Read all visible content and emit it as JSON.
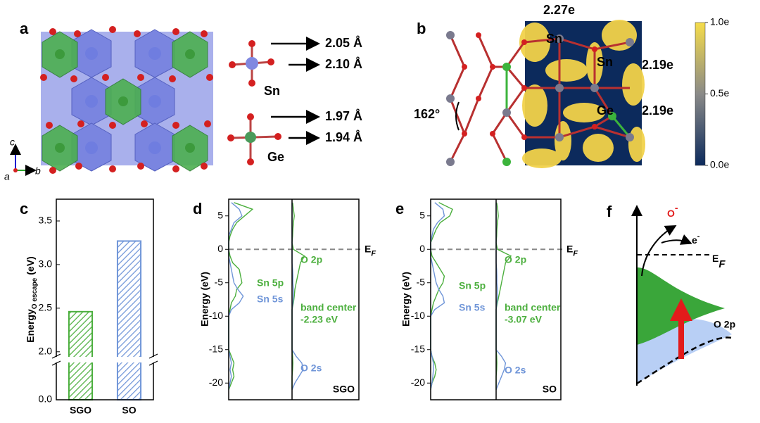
{
  "panel_a": {
    "label": "a",
    "bonds": [
      "2.05 Å",
      "2.10 Å",
      "1.97 Å",
      "1.94 Å"
    ],
    "atoms": [
      "Sn",
      "Ge"
    ],
    "axes": [
      "c",
      "a",
      "b"
    ]
  },
  "panel_b": {
    "label": "b",
    "charges": [
      "2.27e",
      "2.19e",
      "2.19e"
    ],
    "atoms": [
      "Sn",
      "Sn",
      "Ge"
    ],
    "angle": "162°",
    "colorbar": {
      "lim": [
        0,
        1
      ],
      "ticks": [
        {
          "value": 1,
          "label": "1.0e"
        },
        {
          "value": 0.5,
          "label": "0.5e"
        },
        {
          "value": 0,
          "label": "0.0e"
        }
      ]
    }
  },
  "chart_data": [
    {
      "type": "bar",
      "panel_label": "c",
      "ylabel": "Energy",
      "ylabel_sub": "O escape",
      "ylabel_unit": "(eV)",
      "categories": [
        "SGO",
        "SO"
      ],
      "values": [
        2.46,
        3.27
      ],
      "colors": [
        "#4caf3e",
        "#6f95d8"
      ],
      "ylim": [
        0,
        3.75
      ],
      "axis_break": [
        0.1,
        1.95
      ],
      "yticks": [
        {
          "value": 0,
          "label": "0.0"
        },
        {
          "value": 2,
          "label": "2.0"
        },
        2.5,
        {
          "value": 3,
          "label": "3.0"
        },
        3.5
      ]
    },
    {
      "type": "dos",
      "panel_label": "d",
      "sample": "SGO",
      "ylabel": "Energy (eV)",
      "ylim": [
        -22.5,
        7.5
      ],
      "yticks": [
        5,
        0,
        -5,
        -10,
        -15,
        -20
      ],
      "fermi": "E",
      "fermi_sub": "F",
      "xlim": [
        0,
        2.4
      ],
      "energies": [
        7,
        6,
        5,
        4,
        3,
        2,
        1,
        0,
        -1,
        -2,
        -3,
        -4,
        -5,
        -6,
        -7,
        -8,
        -9,
        -10,
        -11,
        -12,
        -13,
        -14,
        -15,
        -16,
        -17,
        -18,
        -19,
        -20,
        -21
      ],
      "subplots": [
        {
          "series": [
            {
              "name": "Sn 5p",
              "color": "#4caf3e",
              "values": [
                0.2,
                0.9,
                0.6,
                0.3,
                0.15,
                0.05,
                0,
                0,
                0.05,
                0.15,
                0.4,
                0.45,
                0.5,
                0.3,
                0.25,
                0.1,
                0.05,
                0,
                0,
                0,
                0,
                0,
                0,
                0.1,
                0.2,
                0.15,
                0.2,
                0.1,
                0
              ]
            },
            {
              "name": "Sn 5s",
              "color": "#6f95d8",
              "values": [
                0.1,
                0.4,
                0.5,
                0.2,
                0.1,
                0,
                0,
                0,
                0,
                0.05,
                0.1,
                0.15,
                0.2,
                0.35,
                0.55,
                0.4,
                0.1,
                0,
                0,
                0,
                0,
                0,
                0,
                0.05,
                0.1,
                0.05,
                0.1,
                0.05,
                0
              ]
            }
          ]
        },
        {
          "series": [
            {
              "name": "O 2p",
              "color": "#4caf3e",
              "values": [
                0.02,
                0.05,
                0.08,
                0.05,
                0.03,
                0.02,
                0,
                0.05,
                0.45,
                0.3,
                0.25,
                0.2,
                0.15,
                0.1,
                0.08,
                0.05,
                0,
                0,
                0,
                0,
                0,
                0,
                0,
                0.02,
                0.03,
                0.02,
                0,
                0,
                0
              ]
            },
            {
              "name": "O 2s",
              "color": "#6f95d8",
              "values": [
                0,
                0,
                0,
                0,
                0,
                0,
                0,
                0,
                0,
                0,
                0.02,
                0.03,
                0.03,
                0.05,
                0.05,
                0.03,
                0,
                0,
                0,
                0,
                0,
                0,
                0,
                0.15,
                0.35,
                0.4,
                0.25,
                0.1,
                0
              ]
            }
          ],
          "annotations": [
            "band center",
            "-2.23 eV"
          ]
        }
      ]
    },
    {
      "type": "dos",
      "panel_label": "e",
      "sample": "SO",
      "ylabel": "Energy (eV)",
      "ylim": [
        -22.5,
        7.5
      ],
      "yticks": [
        5,
        0,
        -5,
        -10,
        -15,
        -20
      ],
      "fermi": "E",
      "fermi_sub": "F",
      "xlim": [
        0,
        2.4
      ],
      "energies": [
        7,
        6,
        5,
        4,
        3,
        2,
        1,
        0,
        -1,
        -2,
        -3,
        -4,
        -5,
        -6,
        -7,
        -8,
        -9,
        -10,
        -11,
        -12,
        -13,
        -14,
        -15,
        -16,
        -17,
        -18,
        -19,
        -20,
        -21
      ],
      "subplots": [
        {
          "series": [
            {
              "name": "Sn 5p",
              "color": "#4caf3e",
              "values": [
                0.3,
                0.8,
                0.7,
                0.35,
                0.2,
                0.1,
                0,
                0,
                0.05,
                0.2,
                0.35,
                0.5,
                0.45,
                0.3,
                0.2,
                0.1,
                0.05,
                0,
                0,
                0,
                0,
                0,
                0,
                0.05,
                0.15,
                0.2,
                0.15,
                0.05,
                0
              ]
            },
            {
              "name": "Sn 5s",
              "color": "#6f95d8",
              "values": [
                0.15,
                0.45,
                0.5,
                0.25,
                0.1,
                0.05,
                0,
                0,
                0,
                0.05,
                0.1,
                0.15,
                0.2,
                0.3,
                0.45,
                0.5,
                0.15,
                0,
                0,
                0,
                0,
                0,
                0,
                0.05,
                0.1,
                0.1,
                0.08,
                0.05,
                0
              ]
            }
          ]
        },
        {
          "series": [
            {
              "name": "O 2p",
              "color": "#4caf3e",
              "values": [
                0.02,
                0.06,
                0.08,
                0.05,
                0.03,
                0.02,
                0,
                0.05,
                0.55,
                0.35,
                0.3,
                0.25,
                0.2,
                0.15,
                0.1,
                0.05,
                0,
                0,
                0,
                0,
                0,
                0,
                0,
                0.02,
                0.03,
                0.02,
                0,
                0,
                0
              ]
            },
            {
              "name": "O 2s",
              "color": "#6f95d8",
              "values": [
                0,
                0,
                0,
                0,
                0,
                0,
                0,
                0,
                0,
                0,
                0.02,
                0.03,
                0.03,
                0.05,
                0.05,
                0.03,
                0,
                0,
                0,
                0,
                0,
                0,
                0,
                0.2,
                0.35,
                0.3,
                0.2,
                0.1,
                0
              ]
            }
          ],
          "annotations": [
            "band center",
            "-3.07 eV"
          ]
        }
      ]
    }
  ],
  "panel_f": {
    "label": "f",
    "ion": "O",
    "ion_charge": "-",
    "electron": "e",
    "electron_charge": "-",
    "fermi": "E",
    "fermi_sub": "F",
    "orbital": "O 2p"
  }
}
